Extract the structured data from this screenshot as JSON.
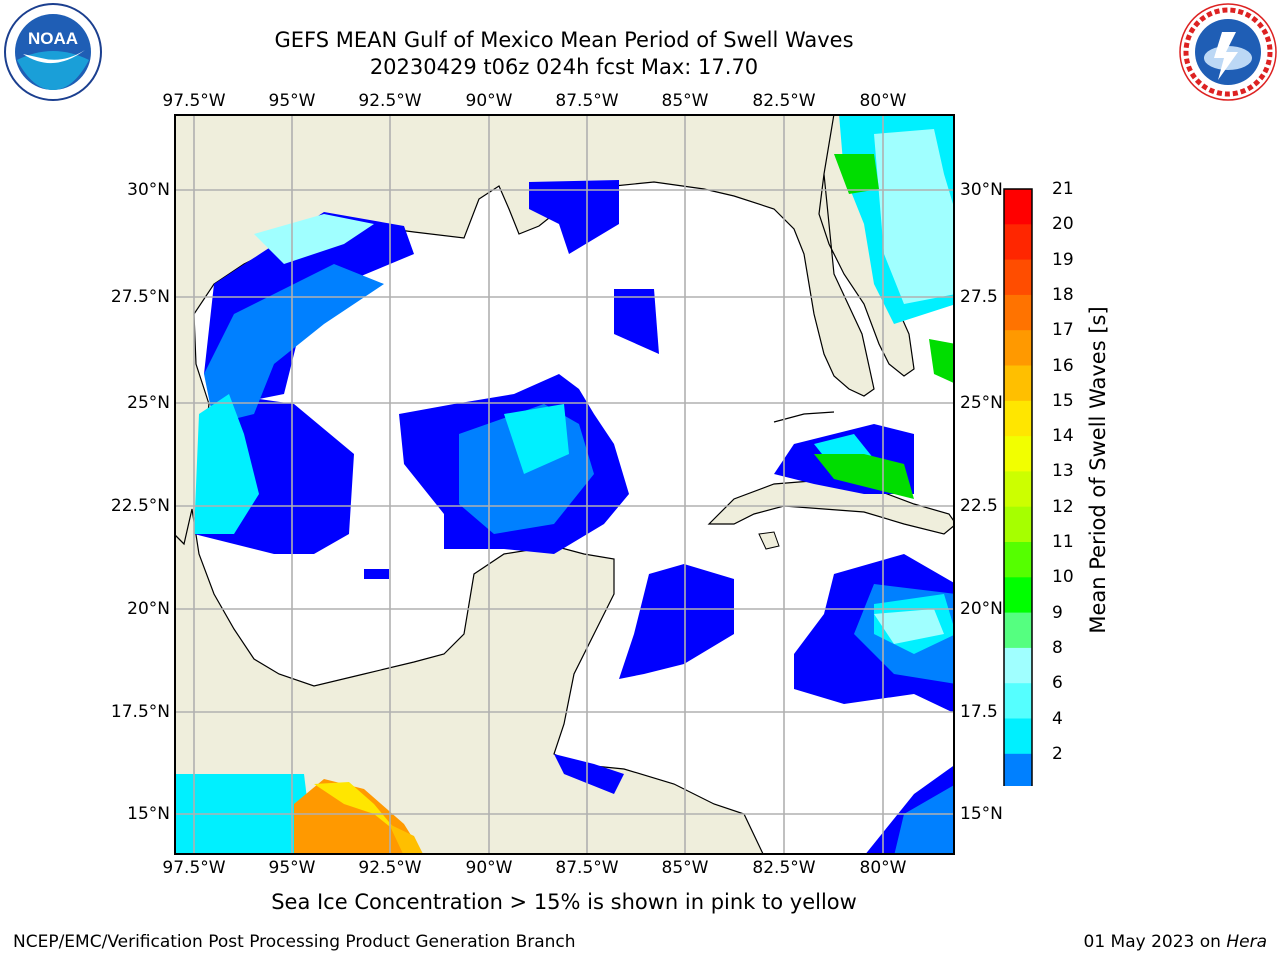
{
  "header": {
    "title_line1": "GEFS MEAN Gulf of Mexico Mean Period of Swell Waves",
    "title_line2": "20230429 t06z 024h fcst   Max: 17.70"
  },
  "axes": {
    "lon_ticks": [
      "97.5°W",
      "95°W",
      "92.5°W",
      "90°W",
      "87.5°W",
      "85°W",
      "82.5°W",
      "80°W"
    ],
    "lat_ticks_left": [
      "30°N",
      "27.5°N",
      "25°N",
      "22.5°N",
      "20°N",
      "17.5°N",
      "15°N"
    ],
    "lat_ticks_right": [
      "30°N",
      "27.5",
      "25°N",
      "22.5",
      "20°N",
      "17.5",
      "15°N"
    ]
  },
  "colorbar": {
    "title": "Mean Period of Swell Waves [s]",
    "ticks": [
      "21",
      "20",
      "19",
      "18",
      "17",
      "16",
      "15",
      "14",
      "13",
      "12",
      "11",
      "10",
      "9",
      "8",
      "6",
      "4",
      "2"
    ],
    "colors": [
      "#ff0000",
      "#ff2600",
      "#ff4d00",
      "#ff7300",
      "#ff9900",
      "#ffbf00",
      "#ffe600",
      "#f2ff00",
      "#ccff00",
      "#a6ff00",
      "#55ff00",
      "#00ff00",
      "#55ff80",
      "#a0ffff",
      "#55ffff",
      "#00f0ff",
      "#0080ff",
      "#0000ff"
    ]
  },
  "map": {
    "land_color": "#efeedc",
    "ocean_color": "#ffffff",
    "grid_color": "#b0b0b0"
  },
  "logos": {
    "left": {
      "name": "NOAA",
      "text": "NOAA"
    },
    "right": {
      "name": "National Weather Service"
    }
  },
  "footer": {
    "note": "Sea Ice Concentration > 15% is shown in pink to yellow",
    "left": "NCEP/EMC/Verification Post Processing Product Generation Branch",
    "right_prefix": "01 May 2023 on ",
    "right_host": "Hera"
  }
}
